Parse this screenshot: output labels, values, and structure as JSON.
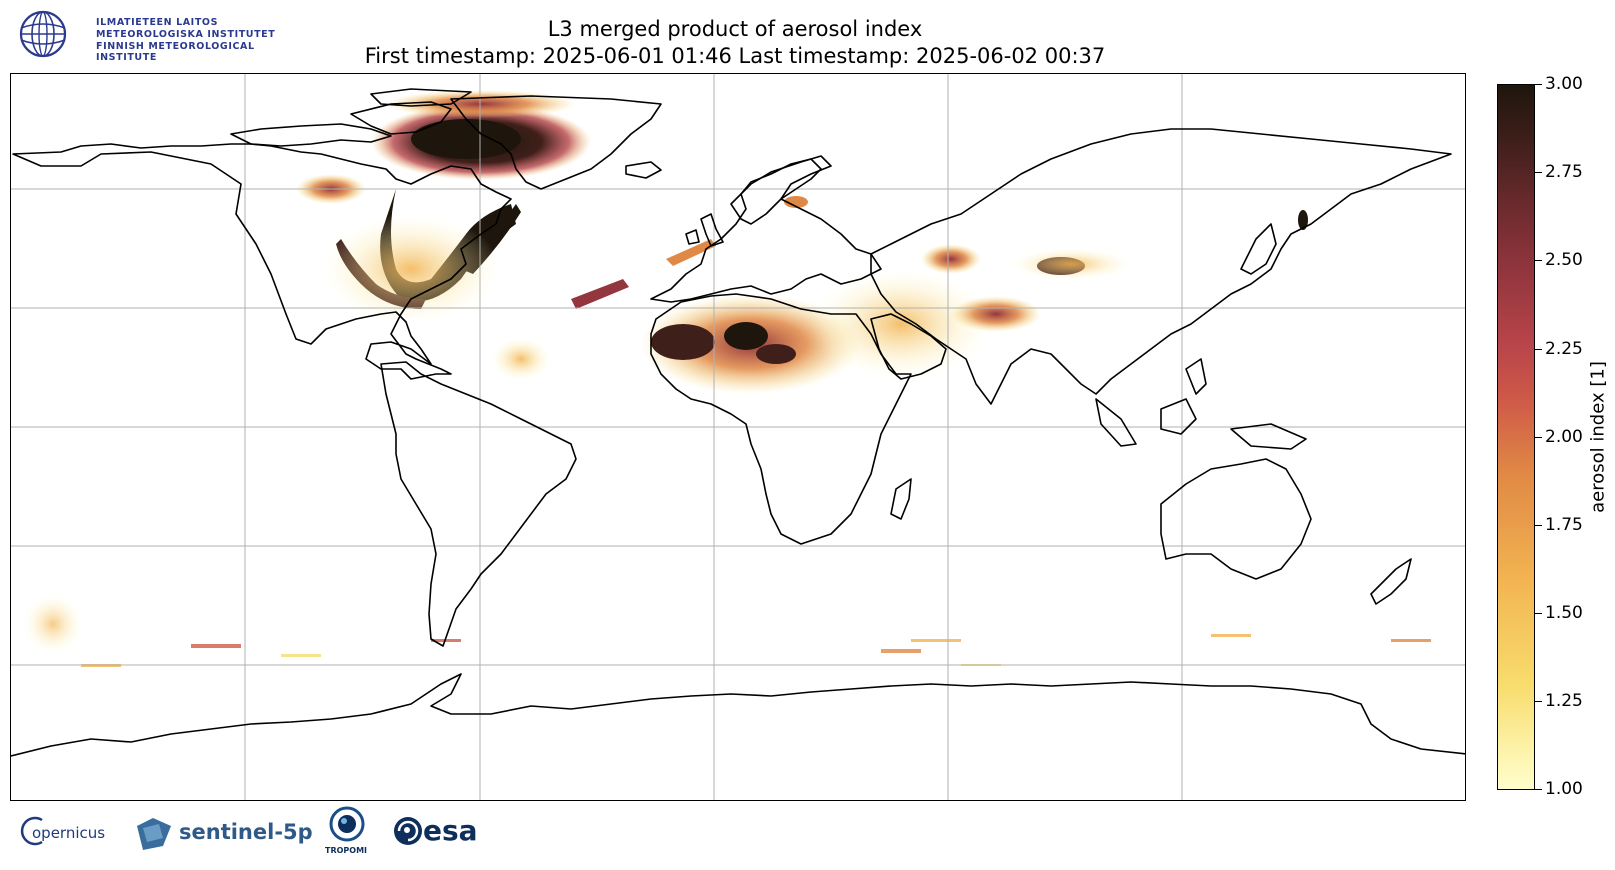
{
  "title": {
    "line1": "L3 merged product of aerosol index",
    "line2": "First timestamp: 2025-06-01 01:46   Last timestamp: 2025-06-02 00:37"
  },
  "fmi_logo": {
    "lines": [
      "ILMATIETEEN LAITOS",
      "METEOROLOGISKA INSTITUTET",
      "FINNISH METEOROLOGICAL INSTITUTE"
    ],
    "color": "#2b3a8f"
  },
  "colorbar": {
    "label": "aerosol index [1]",
    "min": 1.0,
    "max": 3.0,
    "ticks": [
      "3.00",
      "2.75",
      "2.50",
      "2.25",
      "2.00",
      "1.75",
      "1.50",
      "1.25",
      "1.00"
    ],
    "colormap_colors": [
      "#ffffcc",
      "#f2b351",
      "#cf5a48",
      "#94363e",
      "#3f1f1a",
      "#1e160d"
    ]
  },
  "map": {
    "projection": "plate-carree",
    "gridlines": true,
    "gridline_color": "#b0b0b0"
  },
  "footer_logos": {
    "copernicus": "opernicus",
    "sentinel": "sentinel-5p",
    "tropomi": "TROPOMI",
    "esa": "esa"
  }
}
